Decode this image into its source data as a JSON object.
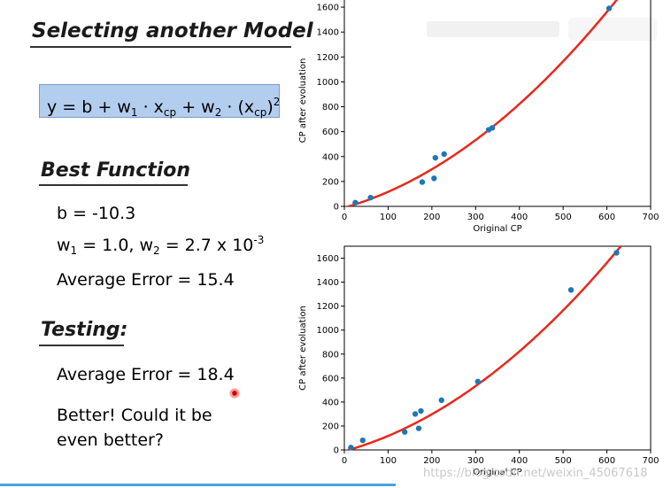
{
  "slide": {
    "heading_select": "Selecting another Model",
    "formula": {
      "y": "y",
      "eq": "=",
      "b": "b",
      "plus1": "+",
      "w1": "w",
      "w1_sub": "1",
      "dot1": "·",
      "x1": "x",
      "x1_sub": "cp",
      "plus2": "+",
      "w2": "w",
      "w2_sub": "2",
      "dot2": "·",
      "paren_open": "(x",
      "x2_sub": "cp",
      "paren_close": ")",
      "power": "2"
    },
    "heading_best": "Best Function",
    "b_line": "b = -10.3",
    "w_line": {
      "w1": "w",
      "w1_sub": "1",
      "w1_val": " = 1.0, w",
      "w2_sub": "2",
      "w2_val": " = 2.7 x 10",
      "exp": "-3"
    },
    "train_error": "Average Error = 15.4",
    "heading_testing": "Testing:",
    "test_error": "Average Error = 18.4",
    "better_1": "Better! Could it be",
    "better_2": "even better?",
    "watermark": "https://blog.csdn.net/weixin_45067618"
  },
  "colors": {
    "formula_bg": "#b3cdef",
    "point": "#1f77b4",
    "curve": "#e8281c",
    "accent_line": "#4aa3df"
  },
  "chart_data": [
    {
      "type": "scatter",
      "xlabel": "Original CP",
      "ylabel": "CP after evoluation",
      "xlim": [
        0,
        700
      ],
      "ylim": [
        0,
        1700
      ],
      "xticks": [
        0,
        100,
        200,
        300,
        400,
        500,
        600,
        700
      ],
      "yticks": [
        0,
        200,
        400,
        600,
        800,
        1000,
        1200,
        1400,
        1600
      ],
      "points": [
        {
          "x": 25,
          "y": 30
        },
        {
          "x": 60,
          "y": 70
        },
        {
          "x": 178,
          "y": 195
        },
        {
          "x": 205,
          "y": 225
        },
        {
          "x": 208,
          "y": 390
        },
        {
          "x": 228,
          "y": 420
        },
        {
          "x": 330,
          "y": 615
        },
        {
          "x": 338,
          "y": 630
        },
        {
          "x": 605,
          "y": 1590
        }
      ],
      "curve": {
        "b": -10.3,
        "w1": 1.0,
        "w2": 0.0027
      }
    },
    {
      "type": "scatter",
      "xlabel": "Original CP",
      "ylabel": "CP after evoluation",
      "xlim": [
        0,
        700
      ],
      "ylim": [
        0,
        1700
      ],
      "xticks": [
        0,
        100,
        200,
        300,
        400,
        500,
        600,
        700
      ],
      "yticks": [
        0,
        200,
        400,
        600,
        800,
        1000,
        1200,
        1400,
        1600
      ],
      "points": [
        {
          "x": 15,
          "y": 20
        },
        {
          "x": 42,
          "y": 80
        },
        {
          "x": 138,
          "y": 150
        },
        {
          "x": 162,
          "y": 300
        },
        {
          "x": 170,
          "y": 180
        },
        {
          "x": 175,
          "y": 325
        },
        {
          "x": 222,
          "y": 415
        },
        {
          "x": 305,
          "y": 570
        },
        {
          "x": 518,
          "y": 1335
        },
        {
          "x": 622,
          "y": 1645
        }
      ],
      "curve": {
        "b": -10.3,
        "w1": 1.0,
        "w2": 0.0027
      }
    }
  ]
}
